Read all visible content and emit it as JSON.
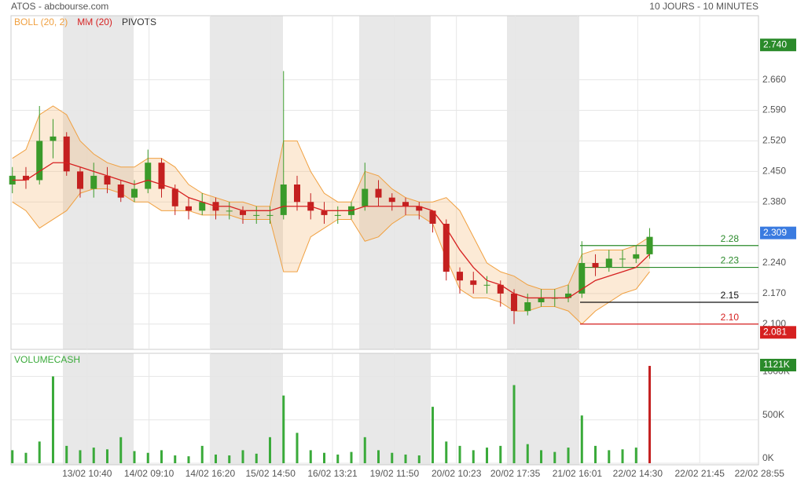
{
  "chart_data": {
    "type": "candlestick",
    "title": "ATOS - abcbourse.com",
    "subtitle": "10 JOURS - 10 MINUTES",
    "legend": [
      {
        "name": "BOLL (20, 2)",
        "color": "#f0a040"
      },
      {
        "name": "MM (20)",
        "color": "#d62020"
      },
      {
        "name": "PIVOTS",
        "color": "#333333"
      }
    ],
    "xlim": [
      -0.1,
      55.2
    ],
    "xticks": [
      {
        "value": 5.51,
        "label": "13/02 10:40"
      },
      {
        "value": 10.08,
        "label": "14/02 09:10"
      },
      {
        "value": 14.59,
        "label": "14/02 16:20"
      },
      {
        "value": 19.04,
        "label": "15/02 14:50"
      },
      {
        "value": 23.61,
        "label": "16/02 13:21"
      },
      {
        "value": 28.18,
        "label": "19/02 11:50"
      },
      {
        "value": 32.75,
        "label": "20/02 10:23"
      },
      {
        "value": 37.09,
        "label": "20/02 17:35"
      },
      {
        "value": 41.66,
        "label": "21/02 16:01"
      },
      {
        "value": 46.12,
        "label": "22/02 14:30"
      },
      {
        "value": 50.69,
        "label": "22/02 21:45"
      },
      {
        "value": 55.1,
        "label": "22/02 28:55"
      }
    ],
    "ylim": [
      2.042,
      2.807
    ],
    "yticks": [
      {
        "value": 2.1,
        "label": "2.100"
      },
      {
        "value": 2.17,
        "label": "2.170"
      },
      {
        "value": 2.24,
        "label": "2.240"
      },
      {
        "value": 2.38,
        "label": "2.380"
      },
      {
        "value": 2.45,
        "label": "2.450"
      },
      {
        "value": 2.52,
        "label": "2.520"
      },
      {
        "value": 2.59,
        "label": "2.590"
      },
      {
        "value": 2.66,
        "label": "2.660"
      }
    ],
    "grid": true,
    "up_color": "#3a9a2a",
    "down_color": "#c42020",
    "open": [
      2.42,
      2.44,
      2.43,
      2.52,
      2.53,
      2.45,
      2.41,
      2.44,
      2.42,
      2.39,
      2.41,
      2.47,
      2.41,
      2.37,
      2.36,
      2.38,
      2.36,
      2.36,
      2.35,
      2.35,
      2.35,
      2.42,
      2.38,
      2.36,
      2.35,
      2.35,
      2.37,
      2.41,
      2.39,
      2.38,
      2.37,
      2.36,
      2.33,
      2.22,
      2.2,
      2.19,
      2.19,
      2.17,
      2.13,
      2.15,
      2.16,
      2.16,
      2.17,
      2.24,
      2.23,
      2.25,
      2.25,
      2.26
    ],
    "high": [
      2.46,
      2.46,
      2.6,
      2.57,
      2.54,
      2.46,
      2.47,
      2.46,
      2.43,
      2.43,
      2.5,
      2.48,
      2.42,
      2.39,
      2.4,
      2.39,
      2.38,
      2.37,
      2.37,
      2.37,
      2.68,
      2.44,
      2.4,
      2.38,
      2.37,
      2.38,
      2.47,
      2.43,
      2.4,
      2.39,
      2.38,
      2.36,
      2.34,
      2.23,
      2.22,
      2.21,
      2.2,
      2.18,
      2.17,
      2.18,
      2.18,
      2.19,
      2.29,
      2.26,
      2.27,
      2.27,
      2.28,
      2.32
    ],
    "low": [
      2.4,
      2.41,
      2.42,
      2.48,
      2.44,
      2.39,
      2.39,
      2.4,
      2.38,
      2.38,
      2.4,
      2.39,
      2.35,
      2.34,
      2.35,
      2.34,
      2.34,
      2.33,
      2.33,
      2.33,
      2.34,
      2.36,
      2.34,
      2.33,
      2.33,
      2.34,
      2.36,
      2.37,
      2.36,
      2.35,
      2.34,
      2.31,
      2.2,
      2.17,
      2.17,
      2.17,
      2.14,
      2.1,
      2.12,
      2.14,
      2.14,
      2.15,
      2.16,
      2.21,
      2.22,
      2.23,
      2.24,
      2.25
    ],
    "close": [
      2.44,
      2.43,
      2.52,
      2.53,
      2.45,
      2.41,
      2.44,
      2.42,
      2.39,
      2.41,
      2.47,
      2.41,
      2.37,
      2.36,
      2.38,
      2.36,
      2.36,
      2.35,
      2.35,
      2.35,
      2.42,
      2.38,
      2.36,
      2.35,
      2.35,
      2.37,
      2.41,
      2.39,
      2.38,
      2.37,
      2.36,
      2.33,
      2.22,
      2.2,
      2.19,
      2.19,
      2.17,
      2.13,
      2.15,
      2.16,
      2.16,
      2.17,
      2.24,
      2.23,
      2.25,
      2.25,
      2.26,
      2.3
    ],
    "ma": [
      2.43,
      2.43,
      2.45,
      2.47,
      2.47,
      2.46,
      2.45,
      2.44,
      2.43,
      2.42,
      2.43,
      2.42,
      2.41,
      2.39,
      2.38,
      2.37,
      2.37,
      2.36,
      2.36,
      2.36,
      2.37,
      2.37,
      2.37,
      2.36,
      2.36,
      2.36,
      2.37,
      2.37,
      2.37,
      2.37,
      2.37,
      2.36,
      2.32,
      2.27,
      2.23,
      2.2,
      2.19,
      2.17,
      2.16,
      2.16,
      2.16,
      2.16,
      2.18,
      2.2,
      2.21,
      2.22,
      2.23,
      2.26
    ],
    "boll_upper": [
      2.48,
      2.5,
      2.58,
      2.6,
      2.58,
      2.52,
      2.49,
      2.47,
      2.46,
      2.46,
      2.48,
      2.48,
      2.46,
      2.42,
      2.4,
      2.39,
      2.38,
      2.38,
      2.37,
      2.37,
      2.52,
      2.52,
      2.45,
      2.4,
      2.38,
      2.38,
      2.45,
      2.44,
      2.41,
      2.39,
      2.38,
      2.38,
      2.39,
      2.36,
      2.3,
      2.24,
      2.22,
      2.21,
      2.19,
      2.18,
      2.18,
      2.19,
      2.26,
      2.27,
      2.27,
      2.27,
      2.28,
      2.3
    ],
    "boll_lower": [
      2.38,
      2.36,
      2.32,
      2.34,
      2.36,
      2.4,
      2.41,
      2.41,
      2.4,
      2.38,
      2.38,
      2.36,
      2.36,
      2.36,
      2.35,
      2.35,
      2.35,
      2.34,
      2.34,
      2.34,
      2.22,
      2.22,
      2.3,
      2.32,
      2.34,
      2.34,
      2.29,
      2.3,
      2.33,
      2.35,
      2.35,
      2.33,
      2.25,
      2.18,
      2.16,
      2.16,
      2.15,
      2.13,
      2.13,
      2.14,
      2.14,
      2.13,
      2.1,
      2.13,
      2.15,
      2.17,
      2.18,
      2.22
    ],
    "pivots": [
      {
        "value": 2.28,
        "label": "2.28",
        "color": "#2a8a2a"
      },
      {
        "value": 2.23,
        "label": "2.23",
        "color": "#2a8a2a"
      },
      {
        "value": 2.15,
        "label": "2.15",
        "color": "#111111"
      },
      {
        "value": 2.1,
        "label": "2.10",
        "color": "#d62020"
      }
    ],
    "badges": [
      {
        "value": 2.74,
        "label": "2.740",
        "color": "#2a8a2a"
      },
      {
        "value": 2.309,
        "label": "2.309",
        "color": "#3a7be0"
      },
      {
        "value": 2.081,
        "label": "2.081",
        "color": "#d62020"
      }
    ],
    "volume": {
      "title": "VOLUMECASH",
      "color": "#3aaa3a",
      "ylim": [
        0,
        1266000
      ],
      "yticks": [
        {
          "value": 0,
          "label": "0K"
        },
        {
          "value": 500000,
          "label": "500K"
        },
        {
          "value": 1000000,
          "label": "1000K"
        }
      ],
      "badge": {
        "value": 1121000,
        "label": "1121K",
        "color": "#2a8a2a"
      },
      "values": [
        150000,
        120000,
        250000,
        1000000,
        200000,
        150000,
        180000,
        160000,
        300000,
        140000,
        120000,
        150000,
        90000,
        80000,
        200000,
        100000,
        90000,
        150000,
        110000,
        300000,
        780000,
        350000,
        150000,
        120000,
        100000,
        130000,
        300000,
        150000,
        120000,
        100000,
        90000,
        650000,
        250000,
        200000,
        150000,
        180000,
        200000,
        900000,
        220000,
        150000,
        130000,
        180000,
        550000,
        200000,
        150000,
        160000,
        180000,
        1121000
      ]
    }
  }
}
